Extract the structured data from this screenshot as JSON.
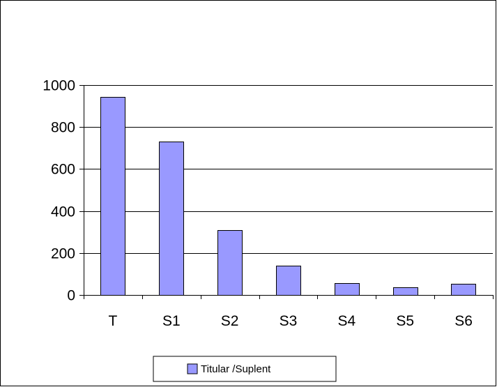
{
  "chart_data": {
    "type": "bar",
    "title": "",
    "xlabel": "",
    "ylabel": "",
    "categories": [
      "T",
      "S1",
      "S2",
      "S3",
      "S4",
      "S5",
      "S6"
    ],
    "series": [
      {
        "name": "Titular /Suplent",
        "values": [
          945,
          730,
          310,
          138,
          58,
          38,
          52
        ]
      }
    ],
    "ylim": [
      0,
      1000
    ],
    "yticks": [
      0,
      200,
      400,
      600,
      800,
      1000
    ],
    "grid": true,
    "legend_position": "bottom",
    "colors": {
      "bar_fill": "#9999ff",
      "bar_stroke": "#000000",
      "grid": "#000000",
      "axis": "#000000",
      "plot_background": "#ffffff"
    }
  }
}
